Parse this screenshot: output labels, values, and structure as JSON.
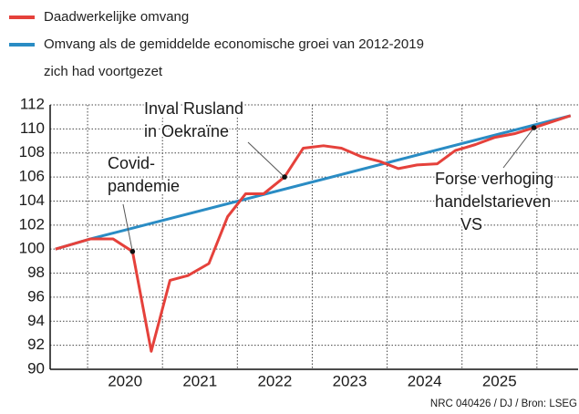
{
  "chart_data": {
    "type": "line",
    "x": [
      2019.57,
      2020.04,
      2020.34,
      2020.6,
      2020.85,
      2021.1,
      2021.34,
      2021.62,
      2021.87,
      2022.11,
      2022.35,
      2022.63,
      2022.88,
      2023.15,
      2023.39,
      2023.65,
      2023.9,
      2024.15,
      2024.4,
      2024.67,
      2024.91,
      2025.18,
      2025.44,
      2025.7,
      2025.96,
      2026.45
    ],
    "series": [
      {
        "name": "Daadwerkelijke omvang",
        "color": "#e5413b",
        "values": [
          100.0,
          100.85,
          100.85,
          99.8,
          91.5,
          97.4,
          97.8,
          98.8,
          102.7,
          104.6,
          104.6,
          106.0,
          108.4,
          108.6,
          108.4,
          107.7,
          107.3,
          106.7,
          107.0,
          107.1,
          108.2,
          108.7,
          109.3,
          109.6,
          110.1,
          111.1
        ]
      },
      {
        "name": "Omvang als de gemiddelde economische groei van 2012-2019 zich had voortgezet",
        "color": "#2a8cc4",
        "x": [
          2019.57,
          2020.04,
          2026.45
        ],
        "values": [
          100.0,
          100.85,
          111.1
        ]
      }
    ],
    "ylim": [
      90,
      112
    ],
    "yticks": [
      90,
      92,
      94,
      96,
      98,
      100,
      102,
      104,
      106,
      108,
      110,
      112
    ],
    "xlim": [
      2019.5,
      2026.55
    ],
    "xticks": [
      {
        "value": 2020.5,
        "label": "2020"
      },
      {
        "value": 2021.5,
        "label": "2021"
      },
      {
        "value": 2022.5,
        "label": "2022"
      },
      {
        "value": 2023.5,
        "label": "2023"
      },
      {
        "value": 2024.5,
        "label": "2024"
      },
      {
        "value": 2025.5,
        "label": "2025"
      }
    ],
    "xgrid": [
      2020,
      2021,
      2022,
      2023,
      2024,
      2025,
      2026
    ],
    "grid": true,
    "annotations": [
      {
        "lines": [
          "Covid-",
          "pandemie"
        ],
        "point": 3
      },
      {
        "lines": [
          "Inval Rusland",
          "in Oekraïne"
        ],
        "point": 11
      },
      {
        "lines": [
          "Forse verhoging",
          "handelstarieven",
          "VS"
        ],
        "point": 24
      }
    ],
    "source": "NRC 040426 / DJ / Bron: LSEG"
  }
}
